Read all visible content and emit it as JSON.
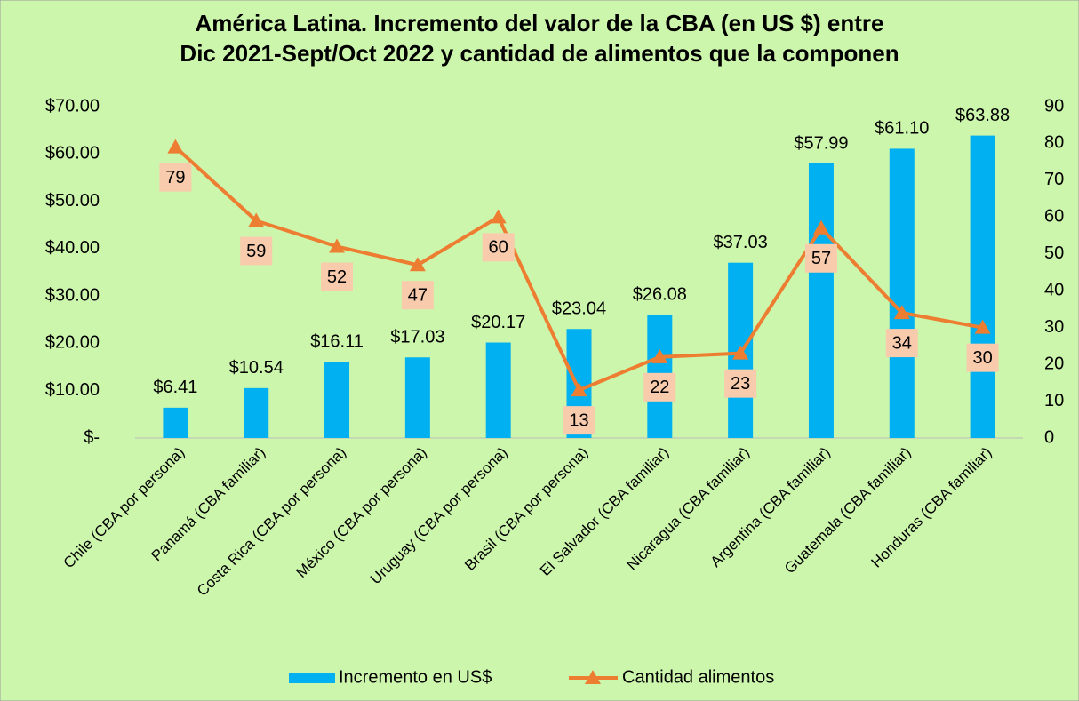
{
  "chart_data": {
    "type": "bar",
    "title": [
      "América Latina. Incremento del valor de la CBA (en US $) entre",
      "Dic 2021-Sept/Oct 2022 y cantidad de alimentos que la componen"
    ],
    "categories": [
      "Chile (CBA por persona)",
      "Panamá (CBA familiar)",
      "Costa Rica (CBA por persona)",
      "México (CBA por persona)",
      "Uruguay (CBA por persona)",
      "Brasil (CBA por persona)",
      "El Salvador (CBA familiar)",
      "Nicaragua (CBA familiar)",
      "Argentina (CBA familiar)",
      "Guatemala (CBA familiar)",
      "Honduras (CBA familiar)"
    ],
    "series": [
      {
        "name": "Incremento en US$",
        "type": "bar",
        "color": "#00b0f0",
        "values": [
          6.41,
          10.54,
          16.11,
          17.03,
          20.17,
          23.04,
          26.08,
          37.03,
          57.99,
          61.1,
          63.88
        ],
        "value_labels": [
          "$6.41",
          "$10.54",
          "$16.11",
          "$17.03",
          "$20.17",
          "$23.04",
          "$26.08",
          "$37.03",
          "$57.99",
          "$61.10",
          "$63.88"
        ]
      },
      {
        "name": "Cantidad alimentos",
        "type": "line",
        "axis": "y2",
        "color": "#ed7d31",
        "values": [
          79,
          59,
          52,
          47,
          60,
          13,
          22,
          23,
          57,
          34,
          30
        ]
      }
    ],
    "ylim": [
      0,
      70
    ],
    "yticks": [
      {
        "value": 0,
        "label": "$-"
      },
      {
        "value": 10,
        "label": "$10.00"
      },
      {
        "value": 20,
        "label": "$20.00"
      },
      {
        "value": 30,
        "label": "$30.00"
      },
      {
        "value": 40,
        "label": "$40.00"
      },
      {
        "value": 50,
        "label": "$50.00"
      },
      {
        "value": 60,
        "label": "$60.00"
      },
      {
        "value": 70,
        "label": "$70.00"
      }
    ],
    "y2lim": [
      0,
      90
    ],
    "y2ticks": [
      0,
      10,
      20,
      30,
      40,
      50,
      60,
      70,
      80,
      90
    ],
    "legend": "bottom"
  }
}
